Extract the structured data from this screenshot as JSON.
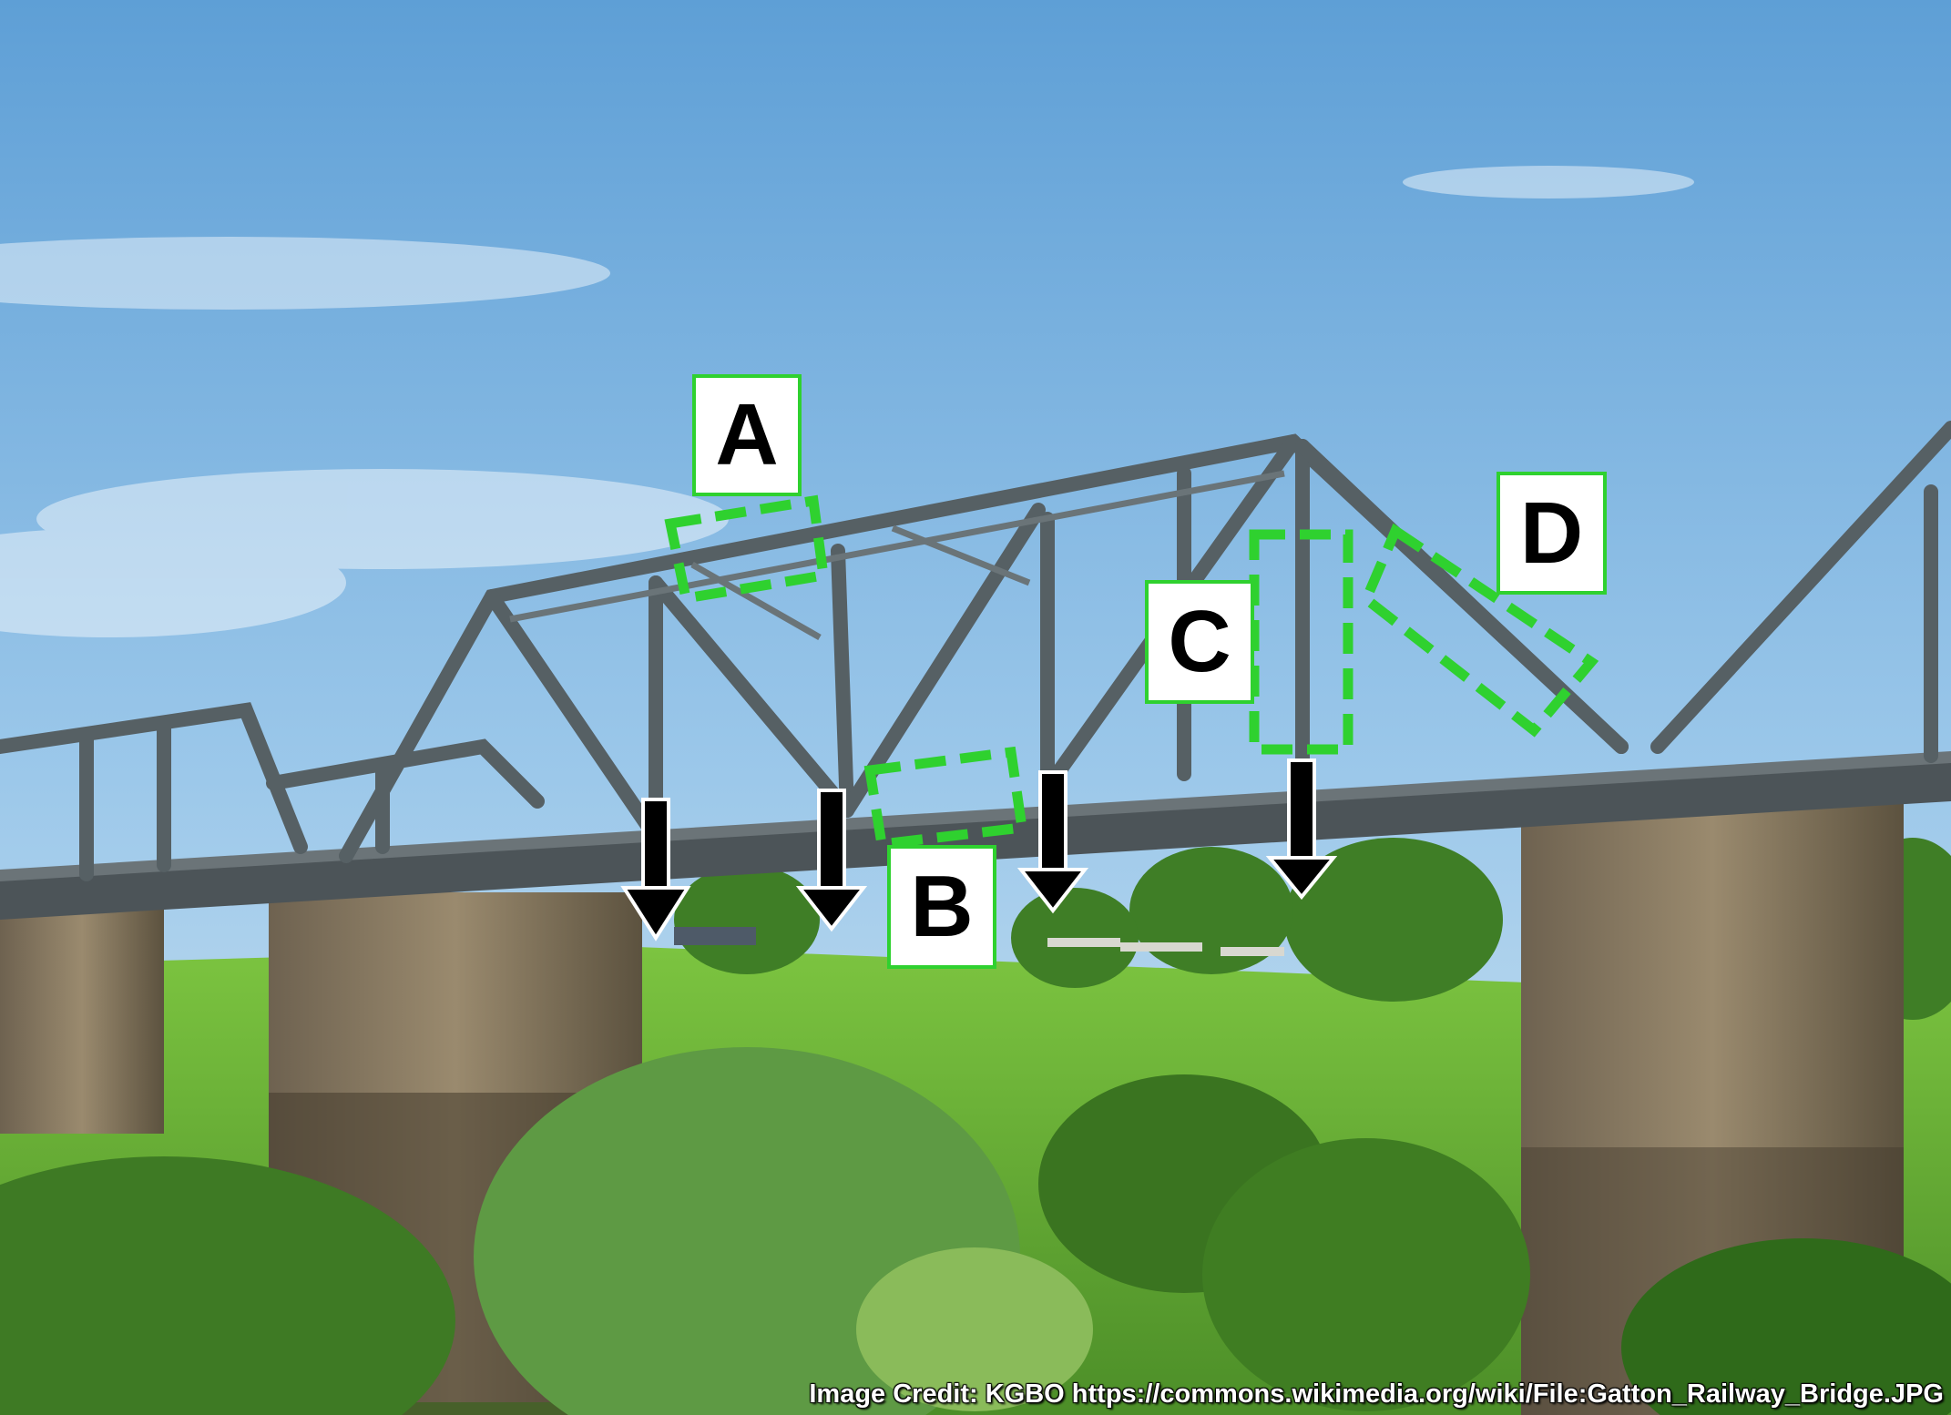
{
  "photo": {
    "subject": "steel truss railway bridge on concrete piers",
    "colors": {
      "sky_top": "#5d9fd6",
      "sky_bottom": "#cfe3f2",
      "steel": "#5a6468",
      "pier": "#8a7a62",
      "grass": "#6fb83a",
      "foliage_dark": "#3e7a24",
      "highlight_green": "#2fd12f",
      "arrow": "#000000"
    }
  },
  "labels": {
    "a": "A",
    "b": "B",
    "c": "C",
    "d": "D"
  },
  "arrows": [
    "down-arrow",
    "down-arrow",
    "down-arrow",
    "down-arrow"
  ],
  "credit": "Image Credit: KGBO https://commons.wikimedia.org/wiki/File:Gatton_Railway_Bridge.JPG"
}
